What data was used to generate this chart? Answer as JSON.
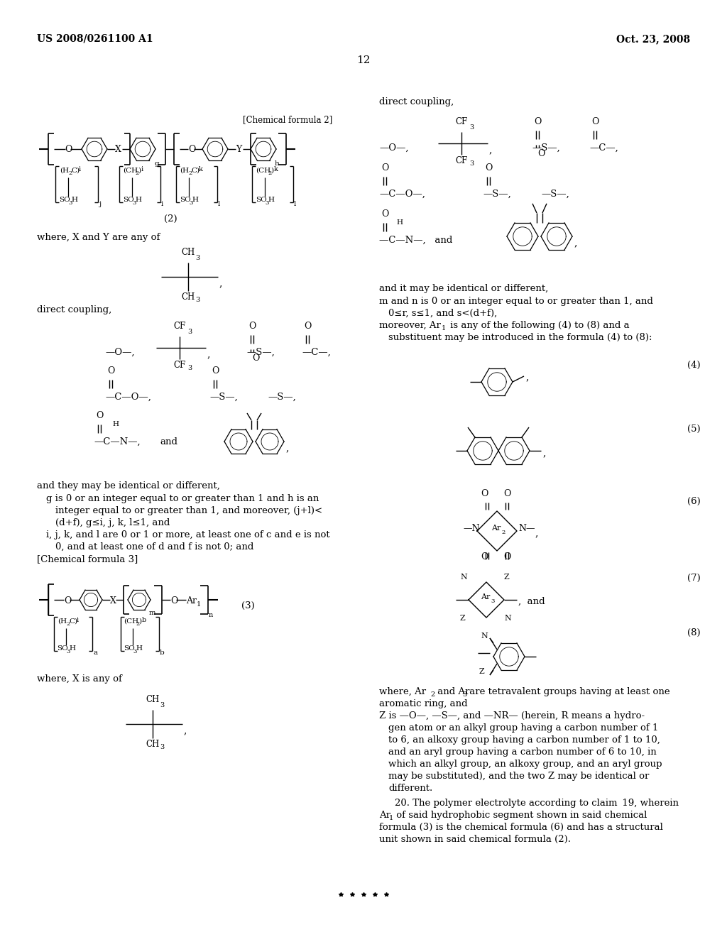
{
  "header_left": "US 2008/0261100 A1",
  "header_right": "Oct. 23, 2008",
  "page_number": "12",
  "background_color": "#ffffff",
  "figsize": [
    10.24,
    13.2
  ],
  "dpi": 100
}
